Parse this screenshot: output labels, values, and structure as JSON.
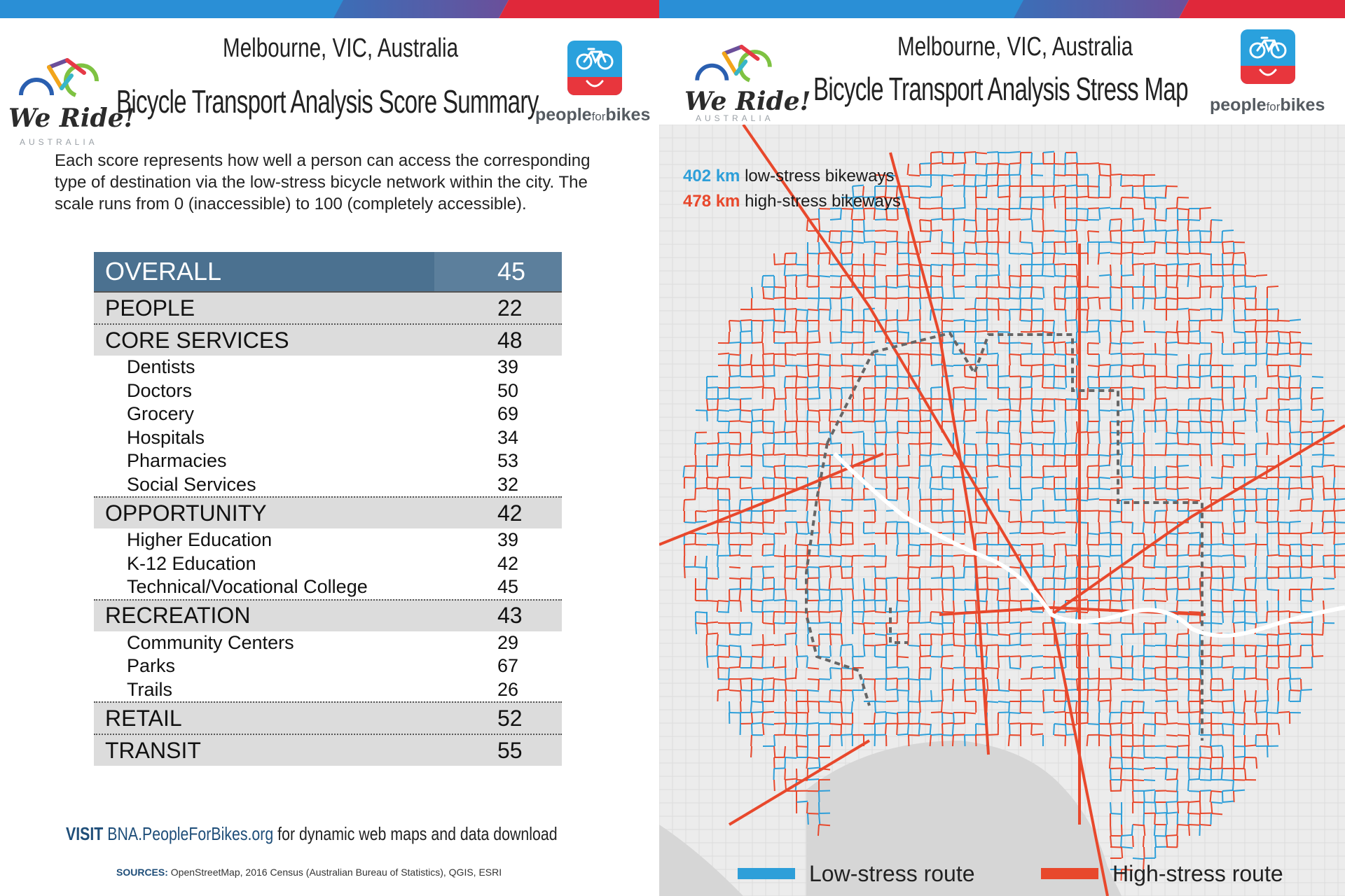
{
  "colors": {
    "low_stress": "#2e9fd9",
    "high_stress": "#e8482c",
    "overall_bg": "#4b7190",
    "category_bg": "#dcdcdc",
    "stripe_blue": "#2a8fd6",
    "stripe_purple": "#6b4f9a",
    "stripe_red": "#e0283a"
  },
  "logos": {
    "we_ride": "We Ride!",
    "we_ride_sub": "AUSTRALIA",
    "pfb_people": "people",
    "pfb_for": "for",
    "pfb_bikes": "bikes",
    "pfb_icon": "bicycle-icon"
  },
  "score_summary": {
    "title_line1": "Melbourne, VIC, Australia",
    "title_line2": "Bicycle Transport Analysis Score Summary",
    "intro": "Each score represents how well a person can access the corresponding type of destination via the low-stress bicycle network within the city. The scale runs from 0 (inaccessible) to 100 (completely accessible).",
    "overall": {
      "label": "OVERALL",
      "value": "45"
    },
    "people": {
      "label": "PEOPLE",
      "value": "22"
    },
    "core_services": {
      "label": "CORE SERVICES",
      "value": "48",
      "items": [
        {
          "label": "Dentists",
          "value": "39"
        },
        {
          "label": "Doctors",
          "value": "50"
        },
        {
          "label": "Grocery",
          "value": "69"
        },
        {
          "label": "Hospitals",
          "value": "34"
        },
        {
          "label": "Pharmacies",
          "value": "53"
        },
        {
          "label": "Social Services",
          "value": "32"
        }
      ]
    },
    "opportunity": {
      "label": "OPPORTUNITY",
      "value": "42",
      "items": [
        {
          "label": "Higher Education",
          "value": "39"
        },
        {
          "label": "K-12 Education",
          "value": "42"
        },
        {
          "label": "Technical/Vocational College",
          "value": "45"
        }
      ]
    },
    "recreation": {
      "label": "RECREATION",
      "value": "43",
      "items": [
        {
          "label": "Community Centers",
          "value": "29"
        },
        {
          "label": "Parks",
          "value": "67"
        },
        {
          "label": "Trails",
          "value": "26"
        }
      ]
    },
    "retail": {
      "label": "RETAIL",
      "value": "52"
    },
    "transit": {
      "label": "TRANSIT",
      "value": "55"
    },
    "visit_keyword": "VISIT",
    "visit_url": "BNA.PeopleForBikes.org",
    "visit_text": "for dynamic web maps and data download",
    "sources_keyword": "SOURCES:",
    "sources_text": "OpenStreetMap, 2016 Census (Australian Bureau of Statistics), QGIS, ESRI"
  },
  "stress_map": {
    "title_line1": "Melbourne, VIC, Australia",
    "title_line2": "Bicycle Transport Analysis Stress Map",
    "low_stress_km": "402 km",
    "low_stress_text": "low-stress bikeways",
    "high_stress_km": "478 km",
    "high_stress_text": "high-stress bikeways",
    "legend_low": "Low-stress route",
    "legend_high": "High-stress route"
  }
}
